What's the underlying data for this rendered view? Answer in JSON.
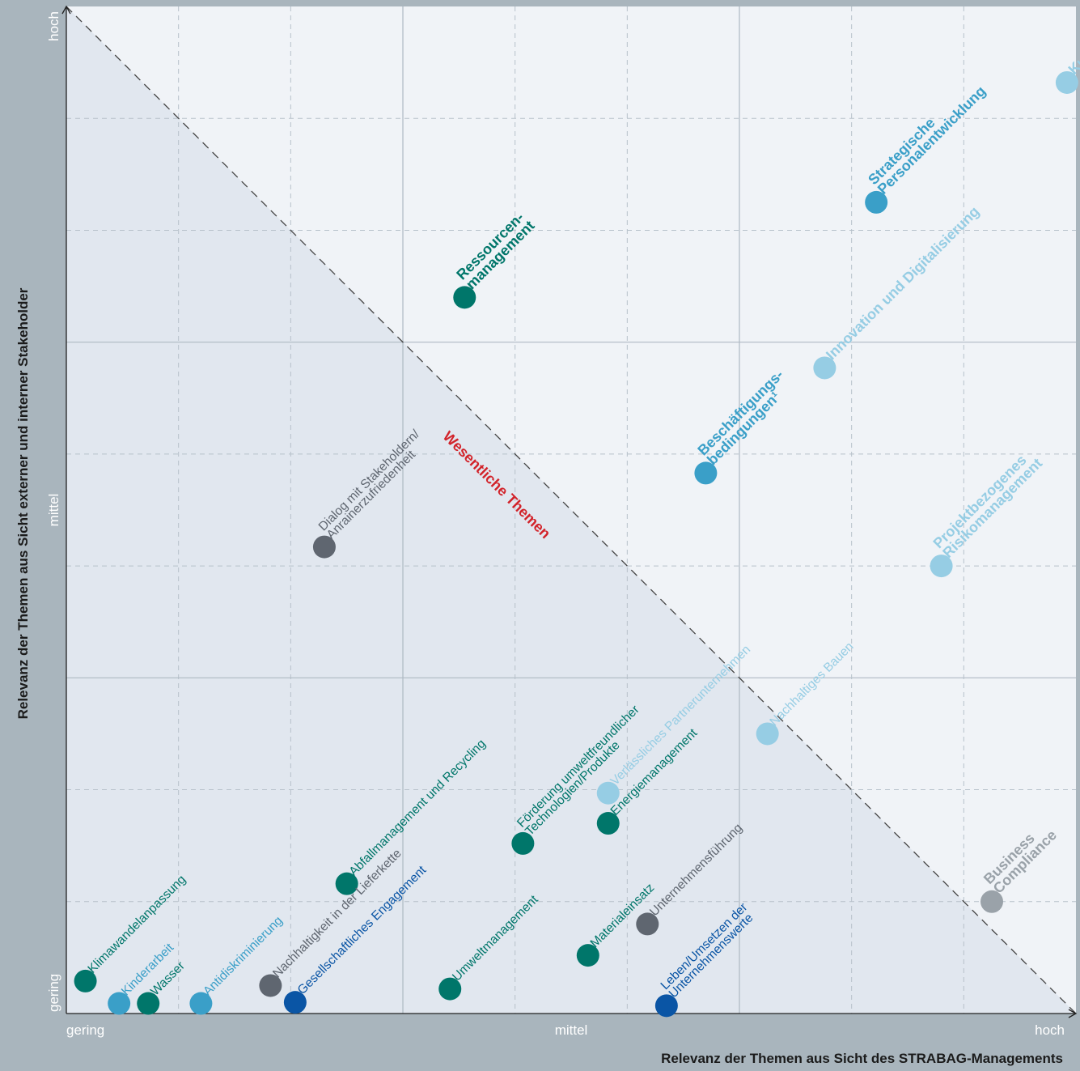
{
  "chart_data": {
    "type": "scatter",
    "xlabel": "Relevanz der Themen aus Sicht des STRABAG-Managements",
    "ylabel": "Relevanz der Themen aus Sicht externer und interner Stakeholder",
    "x_ticks": [
      "gering",
      "mittel",
      "hoch"
    ],
    "y_ticks": [
      "gering",
      "mittel",
      "hoch"
    ],
    "xlim": [
      0,
      9
    ],
    "ylim": [
      0,
      9
    ],
    "grid": true,
    "zone_label": "Wesentliche Themen",
    "colors": {
      "teal": "#00766a",
      "blue_mid": "#3a9fc8",
      "blue_light": "#96cde4",
      "blue_dark": "#0a55a5",
      "gray": "#5f6670",
      "gray_light": "#9aa2a9",
      "accent_red": "#d2232a"
    },
    "points": [
      {
        "label": [
          "Kundenzufriedenheit"
        ],
        "x": 8.92,
        "y": 8.32,
        "color": "blue_light",
        "bold": true
      },
      {
        "label": [
          "Strategische",
          "Personalentwicklung"
        ],
        "x": 7.22,
        "y": 7.25,
        "color": "blue_mid",
        "bold": true
      },
      {
        "label": [
          "Ressourcen-",
          "management"
        ],
        "x": 3.55,
        "y": 6.4,
        "color": "teal",
        "bold": true
      },
      {
        "label": [
          "Innovation und Digitalisierung"
        ],
        "x": 6.76,
        "y": 5.77,
        "color": "blue_light",
        "bold": true
      },
      {
        "label": [
          "Beschäftigungs-",
          "bedingungen¹"
        ],
        "x": 5.7,
        "y": 4.83,
        "color": "blue_mid",
        "bold": true
      },
      {
        "label": [
          "Projektbezogenes",
          "Risikomanagement"
        ],
        "x": 7.8,
        "y": 4.0,
        "color": "blue_light",
        "bold": true
      },
      {
        "label": [
          "Dialog mit Stakeholdern/",
          "Anrainerzufriedenheit"
        ],
        "x": 2.3,
        "y": 4.17,
        "color": "gray",
        "bold": false
      },
      {
        "label": [
          "Nachhaltiges Bauen"
        ],
        "x": 6.25,
        "y": 2.5,
        "color": "blue_light",
        "bold": false
      },
      {
        "label": [
          "Business",
          "Compliance"
        ],
        "x": 8.25,
        "y": 1.0,
        "color": "gray_light",
        "bold": true
      },
      {
        "label": [
          "Verlässliches Partnerunternehmen"
        ],
        "x": 4.83,
        "y": 1.97,
        "color": "blue_light",
        "bold": false
      },
      {
        "label": [
          "Energiemanagement"
        ],
        "x": 4.83,
        "y": 1.7,
        "color": "teal",
        "bold": false
      },
      {
        "label": [
          "Förderung umweltfreundlicher",
          "Technologien/Produkte"
        ],
        "x": 4.07,
        "y": 1.52,
        "color": "teal",
        "bold": false
      },
      {
        "label": [
          "Abfallmanagement und Recycling"
        ],
        "x": 2.5,
        "y": 1.16,
        "color": "teal",
        "bold": false
      },
      {
        "label": [
          "Unternehmensführung"
        ],
        "x": 5.18,
        "y": 0.8,
        "color": "gray",
        "bold": false
      },
      {
        "label": [
          "Materialeinsatz"
        ],
        "x": 4.65,
        "y": 0.52,
        "color": "teal",
        "bold": false
      },
      {
        "label": [
          "Umweltmanagement"
        ],
        "x": 3.42,
        "y": 0.22,
        "color": "teal",
        "bold": false
      },
      {
        "label": [
          "Leben/Umsetzen der",
          "Unternehmenswerte"
        ],
        "x": 5.35,
        "y": 0.07,
        "color": "blue_dark",
        "bold": false
      },
      {
        "label": [
          "Gesellschaftliches Engagement"
        ],
        "x": 2.04,
        "y": 0.1,
        "color": "blue_dark",
        "bold": false
      },
      {
        "label": [
          "Nachhaltigkeit in der Lieferkette"
        ],
        "x": 1.82,
        "y": 0.25,
        "color": "gray",
        "bold": false
      },
      {
        "label": [
          "Antidiskriminierung"
        ],
        "x": 1.2,
        "y": 0.09,
        "color": "blue_mid",
        "bold": false
      },
      {
        "label": [
          "Klimawandelanpassung"
        ],
        "x": 0.17,
        "y": 0.29,
        "color": "teal",
        "bold": false
      },
      {
        "label": [
          "Kinderarbeit"
        ],
        "x": 0.47,
        "y": 0.09,
        "color": "blue_mid",
        "bold": false
      },
      {
        "label": [
          "Wasser"
        ],
        "x": 0.73,
        "y": 0.09,
        "color": "teal",
        "bold": false
      }
    ]
  }
}
